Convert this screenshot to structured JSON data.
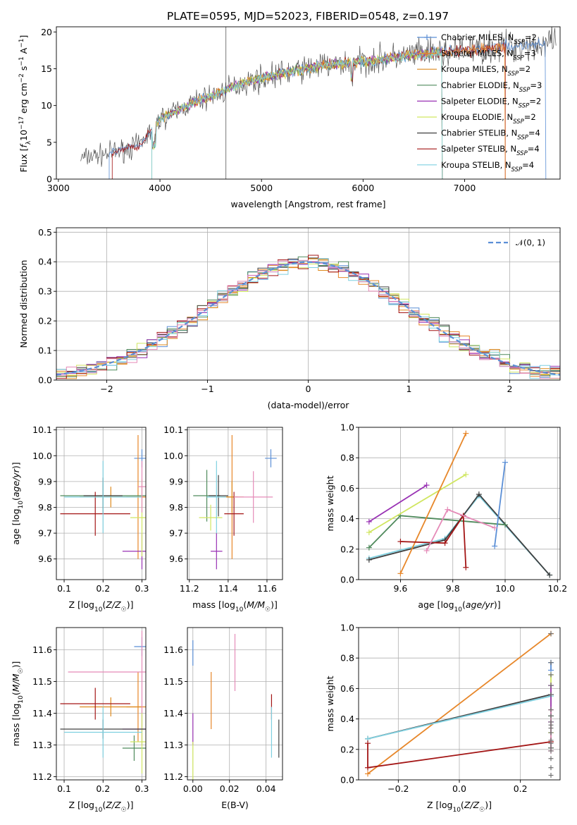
{
  "figure_title": "PLATE=0595, MJD=52023, FIBERID=0548, z=0.197",
  "colors": {
    "Chabrier MILES": "#5b8fd6",
    "Salpeter MILES": "#e7872a",
    "Kroupa MILES": "#de8a1e",
    "Chabrier ELODIE": "#4f8a5c",
    "Salpeter ELODIE": "#9932b4",
    "Kroupa ELODIE": "#d0e660",
    "Chabrier STELIB": "#404040",
    "Salpeter STELIB": "#a31515",
    "Kroupa STELIB": "#7fd0e0",
    "pink": "#e58bb8",
    "gaussian": "#5b8fd6"
  },
  "chart_data": [
    {
      "type": "line",
      "panel": "spectrum",
      "xlabel": "wavelength [Angstrom, rest frame]",
      "ylabel": "Flux [f_λ10^-17 erg cm^-2 s^-1 A^-1]",
      "xlim": [
        2980,
        7940
      ],
      "ylim": [
        0,
        20.7
      ],
      "xticks": [
        3000,
        4000,
        5000,
        6000,
        7000
      ],
      "yticks": [
        0,
        5,
        10,
        15,
        20
      ],
      "grid": false,
      "legend_position": "right",
      "series": [
        {
          "name": "Chabrier MILES, N_SSP=2",
          "color": "#5b8fd6",
          "marker": "+"
        },
        {
          "name": "Salpeter MILES, N_SSP=3",
          "color": "#e7872a",
          "marker": "+"
        },
        {
          "name": "Kroupa MILES, N_SSP=2",
          "color": "#de8a1e"
        },
        {
          "name": "Chabrier ELODIE, N_SSP=3",
          "color": "#4f8a5c"
        },
        {
          "name": "Salpeter ELODIE, N_SSP=2",
          "color": "#9932b4"
        },
        {
          "name": "Kroupa ELODIE, N_SSP=2",
          "color": "#d0e660"
        },
        {
          "name": "Chabrier STELIB, N_SSP=4",
          "color": "#404040"
        },
        {
          "name": "Salpeter STELIB, N_SSP=4",
          "color": "#a31515"
        },
        {
          "name": "Kroupa STELIB, N_SSP=4",
          "color": "#7fd0e0"
        }
      ],
      "continuum": {
        "x": [
          3200,
          3500,
          3800,
          4000,
          4300,
          4600,
          4800,
          5000,
          5300,
          5600,
          5900,
          6200,
          6500,
          6800,
          7100,
          7400,
          7700,
          7900
        ],
        "y": [
          2.8,
          3.5,
          4.6,
          8.2,
          10.2,
          11.8,
          13.0,
          13.7,
          14.7,
          15.4,
          15.8,
          16.3,
          16.9,
          17.2,
          17.6,
          18.0,
          18.3,
          18.4
        ]
      },
      "series_ranges": [
        {
          "color": "#404040",
          "xmin": 3220,
          "xmax": 7900
        },
        {
          "color": "#5b8fd6",
          "xmin": 3500,
          "xmax": 7800
        },
        {
          "color": "#a31515",
          "xmin": 3530,
          "xmax": 7400
        },
        {
          "color": "#e7872a",
          "xmin": 3920,
          "xmax": 7400
        },
        {
          "color": "#de8a1e",
          "xmin": 3920,
          "xmax": 6780
        },
        {
          "color": "#4f8a5c",
          "xmin": 3920,
          "xmax": 6780
        },
        {
          "color": "#9932b4",
          "xmin": 3920,
          "xmax": 6780
        },
        {
          "color": "#d0e660",
          "xmin": 3920,
          "xmax": 6780
        },
        {
          "color": "#7fd0e0",
          "xmin": 3920,
          "xmax": 6780
        }
      ]
    },
    {
      "type": "histogram",
      "panel": "residuals",
      "xlabel": "(data-model)/error",
      "ylabel": "Normed distribution",
      "xlim": [
        -2.5,
        2.5
      ],
      "ylim": [
        0,
        0.515
      ],
      "xticks": [
        -2,
        -1,
        0,
        1,
        2
      ],
      "yticks": [
        0.0,
        0.1,
        0.2,
        0.3,
        0.4,
        0.5
      ],
      "grid": true,
      "legend_position": "top-right",
      "reference": {
        "name": "𝒩(0, 1)",
        "mean": 0,
        "sigma": 1,
        "style": "dashed"
      },
      "bin_width": 0.1,
      "series_count": 9
    },
    {
      "type": "scatter",
      "panel": "age-vs-Z",
      "xlabel": "Z [log10(Z/Z☉)]",
      "ylabel": "age  [log10(age/yr)]",
      "xlim": [
        0.08,
        0.31
      ],
      "ylim": [
        9.52,
        10.11
      ],
      "xticks": [
        0.1,
        0.2,
        0.3
      ],
      "yticks": [
        9.6,
        9.7,
        9.8,
        9.9,
        10.0,
        10.1
      ],
      "grid": true,
      "points": [
        {
          "color": "#5b8fd6",
          "x": 0.3,
          "y": 9.99,
          "xerr": 0.02,
          "yerr": 0.035
        },
        {
          "color": "#e7872a",
          "x": 0.29,
          "y": 9.84,
          "xerr": 0.03,
          "yerr": 0.24
        },
        {
          "color": "#de8a1e",
          "x": 0.22,
          "y": 9.84,
          "xerr": 0.08,
          "yerr": 0.04
        },
        {
          "color": "#4f8a5c",
          "x": 0.2,
          "y": 9.845,
          "xerr": 0.11,
          "yerr": 0.05
        },
        {
          "color": "#9932b4",
          "x": 0.3,
          "y": 9.63,
          "xerr": 0.05,
          "yerr": 0.07
        },
        {
          "color": "#d0e660",
          "x": 0.3,
          "y": 9.76,
          "xerr": 0.03,
          "yerr": 0.15
        },
        {
          "color": "#404040",
          "x": 0.2,
          "y": 9.845,
          "xerr": 0.05,
          "yerr": 0.07
        },
        {
          "color": "#a31515",
          "x": 0.18,
          "y": 9.775,
          "xerr": 0.09,
          "yerr": 0.085
        },
        {
          "color": "#7fd0e0",
          "x": 0.2,
          "y": 9.84,
          "xerr": 0.1,
          "yerr": 0.14
        },
        {
          "color": "#e58bb8",
          "x": 0.3,
          "y": 9.88,
          "xerr": 0.01,
          "yerr": 0.1
        }
      ]
    },
    {
      "type": "scatter",
      "panel": "age-vs-mass",
      "xlabel": "mass [log10(M/M☉)]",
      "ylabel": "",
      "xlim": [
        11.19,
        11.68
      ],
      "ylim": [
        9.52,
        10.11
      ],
      "xticks": [
        11.2,
        11.4,
        11.6
      ],
      "yticks": [
        9.6,
        9.7,
        9.8,
        9.9,
        10.0,
        10.1
      ],
      "grid": true,
      "points": [
        {
          "color": "#5b8fd6",
          "x": 11.62,
          "y": 9.99,
          "xerr": 0.03,
          "yerr": 0.035
        },
        {
          "color": "#e7872a",
          "x": 11.42,
          "y": 9.84,
          "xerr": 0.06,
          "yerr": 0.24
        },
        {
          "color": "#de8a1e",
          "x": 11.42,
          "y": 9.84,
          "xerr": 0.03,
          "yerr": 0.06
        },
        {
          "color": "#4f8a5c",
          "x": 11.29,
          "y": 9.845,
          "xerr": 0.07,
          "yerr": 0.1
        },
        {
          "color": "#9932b4",
          "x": 11.34,
          "y": 9.63,
          "xerr": 0.03,
          "yerr": 0.07
        },
        {
          "color": "#d0e660",
          "x": 11.31,
          "y": 9.76,
          "xerr": 0.06,
          "yerr": 0.05
        },
        {
          "color": "#404040",
          "x": 11.35,
          "y": 9.845,
          "xerr": 0.05,
          "yerr": 0.08
        },
        {
          "color": "#a31515",
          "x": 11.43,
          "y": 9.775,
          "xerr": 0.05,
          "yerr": 0.085
        },
        {
          "color": "#7fd0e0",
          "x": 11.34,
          "y": 9.84,
          "xerr": 0.05,
          "yerr": 0.14
        },
        {
          "color": "#e58bb8",
          "x": 11.53,
          "y": 9.84,
          "xerr": 0.1,
          "yerr": 0.1
        }
      ]
    },
    {
      "type": "line",
      "panel": "weight-vs-age",
      "xlabel": "age  [log10(age/yr)]",
      "ylabel": "mass weight",
      "xlim": [
        9.44,
        10.21
      ],
      "ylim": [
        0,
        1.0
      ],
      "xticks": [
        9.6,
        9.8,
        10.0,
        10.2
      ],
      "yticks": [
        0.0,
        0.2,
        0.4,
        0.6,
        0.8,
        1.0
      ],
      "grid": true,
      "series": [
        {
          "color": "#7fd0e0",
          "x": [
            9.48,
            9.77,
            9.9,
            10.17
          ],
          "y": [
            0.14,
            0.27,
            0.55,
            0.03
          ]
        },
        {
          "color": "#404040",
          "x": [
            9.48,
            9.77,
            9.9,
            10.17
          ],
          "y": [
            0.13,
            0.26,
            0.56,
            0.03
          ]
        },
        {
          "color": "#4f8a5c",
          "x": [
            9.48,
            9.6,
            10.0
          ],
          "y": [
            0.21,
            0.42,
            0.36
          ]
        },
        {
          "color": "#9932b4",
          "x": [
            9.48,
            9.7
          ],
          "y": [
            0.38,
            0.62
          ]
        },
        {
          "color": "#d0e660",
          "x": [
            9.48,
            9.85
          ],
          "y": [
            0.31,
            0.69
          ]
        },
        {
          "color": "#e7872a",
          "x": [
            9.6,
            9.85
          ],
          "y": [
            0.04,
            0.96
          ]
        },
        {
          "color": "#5b8fd6",
          "x": [
            9.96,
            10.0
          ],
          "y": [
            0.22,
            0.77
          ]
        },
        {
          "color": "#a31515",
          "x": [
            9.6,
            9.77,
            9.84,
            9.85
          ],
          "y": [
            0.25,
            0.24,
            0.42,
            0.08
          ]
        },
        {
          "color": "#e58bb8",
          "x": [
            9.7,
            9.78,
            9.96
          ],
          "y": [
            0.19,
            0.46,
            0.34
          ]
        }
      ]
    },
    {
      "type": "scatter",
      "panel": "mass-vs-Z",
      "xlabel": "Z [log10(Z/Z☉)]",
      "ylabel": "mass [log10(M/M☉)]",
      "xlim": [
        0.08,
        0.31
      ],
      "ylim": [
        11.19,
        11.67
      ],
      "xticks": [
        0.1,
        0.2,
        0.3
      ],
      "yticks": [
        11.2,
        11.3,
        11.4,
        11.5,
        11.6
      ],
      "grid": true,
      "points": [
        {
          "color": "#5b8fd6",
          "x": 0.3,
          "y": 11.61,
          "xerr": 0.02,
          "yerr": 0.03
        },
        {
          "color": "#e7872a",
          "x": 0.29,
          "y": 11.42,
          "xerr": 0.03,
          "yerr": 0.11
        },
        {
          "color": "#de8a1e",
          "x": 0.22,
          "y": 11.42,
          "xerr": 0.08,
          "yerr": 0.03
        },
        {
          "color": "#4f8a5c",
          "x": 0.28,
          "y": 11.29,
          "xerr": 0.03,
          "yerr": 0.04
        },
        {
          "color": "#9932b4",
          "x": 0.3,
          "y": 11.35,
          "xerr": 0.05,
          "yerr": 0.05
        },
        {
          "color": "#d0e660",
          "x": 0.3,
          "y": 11.31,
          "xerr": 0.03,
          "yerr": 0.1
        },
        {
          "color": "#404040",
          "x": 0.2,
          "y": 11.35,
          "xerr": 0.11,
          "yerr": 0.03
        },
        {
          "color": "#a31515",
          "x": 0.18,
          "y": 11.43,
          "xerr": 0.09,
          "yerr": 0.05
        },
        {
          "color": "#7fd0e0",
          "x": 0.2,
          "y": 11.34,
          "xerr": 0.1,
          "yerr": 0.08
        },
        {
          "color": "#e58bb8",
          "x": 0.3,
          "y": 11.53,
          "xerr": 0.19,
          "yerr": 0.13
        }
      ]
    },
    {
      "type": "errorbar",
      "panel": "mass-vs-EBV",
      "xlabel": "E(B-V)",
      "ylabel": "",
      "xlim": [
        -0.003,
        0.049
      ],
      "ylim": [
        11.19,
        11.67
      ],
      "xticks": [
        0.0,
        0.02,
        0.04
      ],
      "yticks": [
        11.2,
        11.3,
        11.4,
        11.5,
        11.6
      ],
      "grid": true,
      "points": [
        {
          "color": "#5b8fd6",
          "x": 0.0,
          "y": 11.59,
          "yerr": 0.04
        },
        {
          "color": "#9932b4",
          "x": 0.0,
          "y": 11.35,
          "yerr": 0.05
        },
        {
          "color": "#d0e660",
          "x": 0.0,
          "y": 11.25,
          "yerr": 0.06
        },
        {
          "color": "#e7872a",
          "x": 0.01,
          "y": 11.44,
          "yerr": 0.09
        },
        {
          "color": "#e58bb8",
          "x": 0.023,
          "y": 11.56,
          "yerr": 0.09
        },
        {
          "color": "#a31515",
          "x": 0.043,
          "y": 11.42,
          "yerr": 0.04
        },
        {
          "color": "#7fd0e0",
          "x": 0.043,
          "y": 11.34,
          "yerr": 0.08
        },
        {
          "color": "#404040",
          "x": 0.047,
          "y": 11.32,
          "yerr": 0.06
        }
      ]
    },
    {
      "type": "line",
      "panel": "weight-vs-Z",
      "xlabel": "Z [log10(Z/Z☉)]",
      "ylabel": "mass weight",
      "xlim": [
        -0.33,
        0.33
      ],
      "ylim": [
        0,
        1.0
      ],
      "xticks": [
        -0.2,
        0.0,
        0.2
      ],
      "yticks": [
        0.0,
        0.2,
        0.4,
        0.6,
        0.8,
        1.0
      ],
      "grid": true,
      "series": [
        {
          "color": "#e7872a",
          "x": [
            -0.3,
            0.3
          ],
          "y": [
            0.04,
            0.96
          ]
        },
        {
          "color": "#404040",
          "x": [
            -0.3,
            0.3
          ],
          "y": [
            0.27,
            0.56
          ]
        },
        {
          "color": "#7fd0e0",
          "x": [
            -0.3,
            0.3
          ],
          "y": [
            0.27,
            0.55
          ]
        },
        {
          "color": "#a31515",
          "x": [
            -0.3,
            -0.3,
            0.3
          ],
          "y": [
            0.24,
            0.08,
            0.25
          ]
        },
        {
          "color": "#5b8fd6",
          "x": [
            0.3,
            0.3
          ],
          "y": [
            0.77,
            0.72
          ]
        },
        {
          "color": "#d0e660",
          "x": [
            0.3,
            0.3
          ],
          "y": [
            0.69,
            0.31
          ]
        },
        {
          "color": "#9932b4",
          "x": [
            0.3,
            0.3
          ],
          "y": [
            0.62,
            0.38
          ]
        },
        {
          "color": "#4f8a5c",
          "x": [
            0.3,
            0.3
          ],
          "y": [
            0.42,
            0.21
          ]
        },
        {
          "color": "#e58bb8",
          "x": [
            0.3,
            0.3
          ],
          "y": [
            0.46,
            0.19
          ]
        }
      ],
      "markers_at_right": [
        0.96,
        0.77,
        0.69,
        0.62,
        0.56,
        0.46,
        0.42,
        0.38,
        0.36,
        0.34,
        0.31,
        0.26,
        0.24,
        0.21,
        0.19,
        0.14,
        0.08,
        0.03
      ]
    }
  ]
}
